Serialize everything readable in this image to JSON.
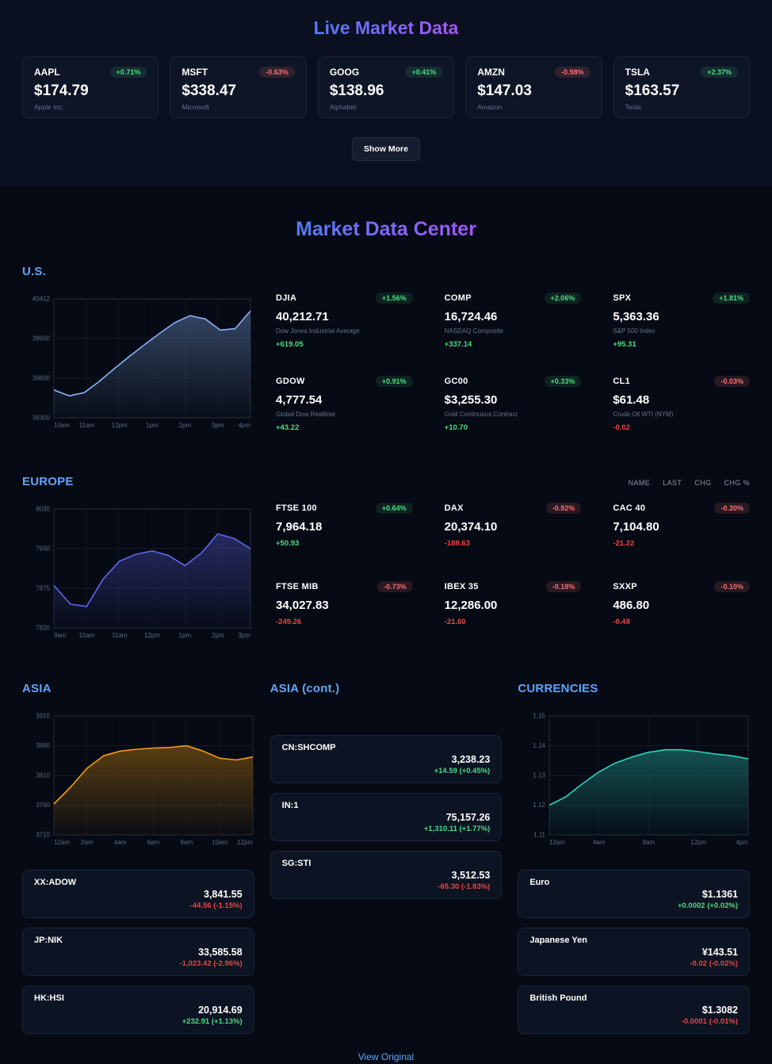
{
  "page": {
    "live_title": "Live Market Data",
    "center_title": "Market Data Center",
    "show_more_label": "Show More",
    "footer_link": "View Original"
  },
  "colors": {
    "title_gradient_start": "#4f7df5",
    "title_gradient_end": "#a855f7",
    "section_header": "#60a5fa",
    "positive": "#4ade80",
    "negative": "#ef4444"
  },
  "live_quotes": [
    {
      "symbol": "AAPL",
      "change_pct": "+0.71%",
      "price": "$174.79",
      "company": "Apple Inc.",
      "dir": "up"
    },
    {
      "symbol": "MSFT",
      "change_pct": "-0.63%",
      "price": "$338.47",
      "company": "Microsoft",
      "dir": "down"
    },
    {
      "symbol": "GOOG",
      "change_pct": "+0.41%",
      "price": "$138.96",
      "company": "Alphabet",
      "dir": "up"
    },
    {
      "symbol": "AMZN",
      "change_pct": "-0.98%",
      "price": "$147.03",
      "company": "Amazon",
      "dir": "down"
    },
    {
      "symbol": "TSLA",
      "change_pct": "+2.37%",
      "price": "$163.57",
      "company": "Tesla",
      "dir": "up"
    }
  ],
  "us": {
    "header": "U.S.",
    "quotes": [
      {
        "symbol": "DJIA",
        "badge": "+1.56%",
        "value": "40,212.71",
        "name": "Dow Jones Industrial Average",
        "change": "+619.05",
        "dir": "up"
      },
      {
        "symbol": "COMP",
        "badge": "+2.06%",
        "value": "16,724.46",
        "name": "NASDAQ Composite",
        "change": "+337.14",
        "dir": "up"
      },
      {
        "symbol": "SPX",
        "badge": "+1.81%",
        "value": "5,363.36",
        "name": "S&P 500 Index",
        "change": "+95.31",
        "dir": "up"
      },
      {
        "symbol": "GDOW",
        "badge": "+0.91%",
        "value": "4,777.54",
        "name": "Global Dow Realtime",
        "change": "+43.22",
        "dir": "up"
      },
      {
        "symbol": "GC00",
        "badge": "+0.33%",
        "value": "$3,255.30",
        "name": "Gold Continuous Contract",
        "change": "+10.70",
        "dir": "up"
      },
      {
        "symbol": "CL1",
        "badge": "-0.03%",
        "value": "$61.48",
        "name": "Crude Oil WTI (NYM)",
        "change": "-0.02",
        "dir": "down"
      }
    ]
  },
  "europe": {
    "header": "EUROPE",
    "table_headers": [
      "NAME",
      "LAST",
      "CHG",
      "CHG %"
    ],
    "quotes": [
      {
        "symbol": "FTSE 100",
        "badge": "+0.64%",
        "value": "7,964.18",
        "change": "+50.93",
        "dir": "up"
      },
      {
        "symbol": "DAX",
        "badge": "-0.92%",
        "value": "20,374.10",
        "change": "-188.63",
        "dir": "down"
      },
      {
        "symbol": "CAC 40",
        "badge": "-0.30%",
        "value": "7,104.80",
        "change": "-21.22",
        "dir": "down"
      },
      {
        "symbol": "FTSE MIB",
        "badge": "-0.73%",
        "value": "34,027.83",
        "change": "-249.26",
        "dir": "down"
      },
      {
        "symbol": "IBEX 35",
        "badge": "-0.18%",
        "value": "12,286.00",
        "change": "-21.60",
        "dir": "down"
      },
      {
        "symbol": "SXXP",
        "badge": "-0.10%",
        "value": "486.80",
        "change": "-0.48",
        "dir": "down"
      }
    ]
  },
  "asia": {
    "header": "ASIA",
    "rows": [
      {
        "symbol": "XX:ADOW",
        "value": "3,841.55",
        "change": "-44.56 (-1.15%)",
        "dir": "down"
      },
      {
        "symbol": "JP:NIK",
        "value": "33,585.58",
        "change": "-1,023.42 (-2.96%)",
        "dir": "down"
      },
      {
        "symbol": "HK:HSI",
        "value": "20,914.69",
        "change": "+232.91 (+1.13%)",
        "dir": "up"
      }
    ]
  },
  "asia_cont": {
    "header": "ASIA (cont.)",
    "rows": [
      {
        "symbol": "CN:SHCOMP",
        "value": "3,238.23",
        "change": "+14.59 (+0.45%)",
        "dir": "up"
      },
      {
        "symbol": "IN:1",
        "value": "75,157.26",
        "change": "+1,310.11 (+1.77%)",
        "dir": "up"
      },
      {
        "symbol": "SG:STI",
        "value": "3,512.53",
        "change": "-65.30 (-1.83%)",
        "dir": "down"
      }
    ]
  },
  "currencies": {
    "header": "CURRENCIES",
    "rows": [
      {
        "symbol": "Euro",
        "value": "$1.1361",
        "change": "+0.0002 (+0.02%)",
        "dir": "up"
      },
      {
        "symbol": "Japanese Yen",
        "value": "¥143.51",
        "change": "-0.02 (-0.02%)",
        "dir": "down"
      },
      {
        "symbol": "British Pound",
        "value": "$1.3082",
        "change": "-0.0001 (-0.01%)",
        "dir": "down"
      }
    ]
  },
  "chart_data": [
    {
      "type": "area",
      "title": "U.S. intraday index chart",
      "x_ticks": [
        "10am",
        "11am",
        "12pm",
        "1pm",
        "2pm",
        "3pm",
        "4pm"
      ],
      "y_ticks": [
        "40412",
        "39900",
        "39600",
        "39300"
      ],
      "ymin": 39300,
      "ymax": 40412,
      "values": [
        39560,
        39505,
        39535,
        39640,
        39760,
        39875,
        39985,
        40090,
        40190,
        40255,
        40225,
        40120,
        40135,
        40300
      ],
      "color": "#8ab4f8"
    },
    {
      "type": "area",
      "title": "Europe intraday index chart",
      "x_ticks": [
        "9am",
        "10am",
        "11am",
        "12pm",
        "1pm",
        "2pm",
        "3pm"
      ],
      "y_ticks": [
        "8030",
        "7930",
        "7875",
        "7820"
      ],
      "ymin": 7820,
      "ymax": 8030,
      "values": [
        7895,
        7862,
        7858,
        7906,
        7938,
        7950,
        7956,
        7948,
        7930,
        7952,
        7986,
        7978,
        7960
      ],
      "color": "#6366f1"
    },
    {
      "type": "area",
      "title": "Asia intraday index chart",
      "x_ticks": [
        "12am",
        "2am",
        "4am",
        "6am",
        "8am",
        "10am",
        "12pm"
      ],
      "y_ticks": [
        "3910",
        "3860",
        "3810",
        "3760",
        "3710"
      ],
      "ymin": 3710,
      "ymax": 3910,
      "values": [
        3762,
        3790,
        3822,
        3843,
        3851,
        3854,
        3856,
        3857,
        3860,
        3851,
        3839,
        3836,
        3841
      ],
      "color": "#f59e0b"
    },
    {
      "type": "area",
      "title": "Currencies intraday chart",
      "x_ticks": [
        "12am",
        "4am",
        "8am",
        "12pm",
        "4pm"
      ],
      "y_ticks": [
        "1.15",
        "1.14",
        "1.13",
        "1.12",
        "1.11"
      ],
      "ymin": 1.11,
      "ymax": 1.15,
      "values": [
        1.12,
        1.1228,
        1.1272,
        1.1312,
        1.1342,
        1.1362,
        1.1378,
        1.1386,
        1.1386,
        1.138,
        1.1372,
        1.1366,
        1.1356
      ],
      "color": "#2dd4bf"
    }
  ]
}
